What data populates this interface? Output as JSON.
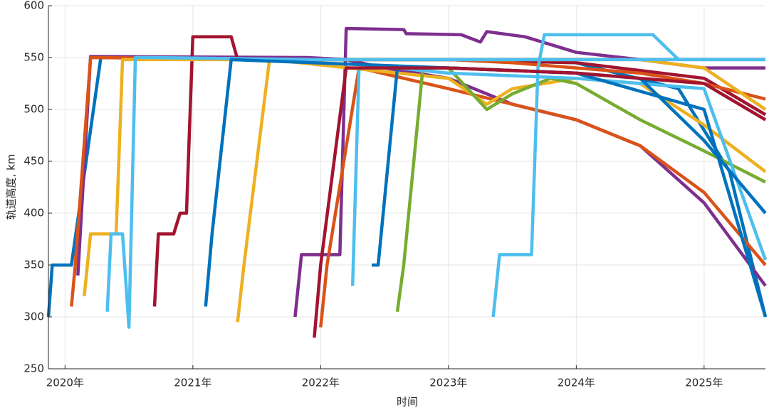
{
  "chart_data": {
    "type": "line",
    "xlabel": "时间",
    "ylabel": "轨道高度, km",
    "xlim": [
      2019.87,
      2025.48
    ],
    "ylim": [
      250,
      600
    ],
    "xticks": [
      {
        "value": 2020,
        "label": "2020年"
      },
      {
        "value": 2021,
        "label": "2021年"
      },
      {
        "value": 2022,
        "label": "2022年"
      },
      {
        "value": 2023,
        "label": "2023年"
      },
      {
        "value": 2024,
        "label": "2024年"
      },
      {
        "value": 2025,
        "label": "2025年"
      }
    ],
    "yticks": [
      250,
      300,
      350,
      400,
      450,
      500,
      550,
      600
    ],
    "grid": true,
    "series": [
      {
        "color": "#0072BD",
        "x": [
          2019.87,
          2019.9,
          2020.05,
          2020.28,
          2021.5,
          2023.0,
          2024.0,
          2024.8,
          2025.2,
          2025.48
        ],
        "values": [
          300,
          350,
          350,
          550,
          548,
          548,
          545,
          520,
          440,
          300
        ]
      },
      {
        "color": "#7E2F8E",
        "x": [
          2020.1,
          2020.2,
          2021.9,
          2022.2,
          2022.5,
          2023.0,
          2023.5,
          2024.0,
          2024.5,
          2025.0,
          2025.48
        ],
        "values": [
          340,
          551,
          550,
          548,
          540,
          530,
          505,
          490,
          465,
          410,
          330
        ]
      },
      {
        "color": "#7E2F8E",
        "x": [
          2021.8,
          2021.85,
          2022.15,
          2022.2,
          2022.65,
          2022.67,
          2023.1,
          2023.25,
          2023.3,
          2023.6,
          2024.0,
          2024.5,
          2025.0,
          2025.48
        ],
        "values": [
          300,
          360,
          360,
          578,
          577,
          573,
          572,
          565,
          575,
          570,
          555,
          548,
          540,
          540
        ]
      },
      {
        "color": "#A2142F",
        "x": [
          2020.7,
          2020.73,
          2020.85,
          2020.9,
          2020.95,
          2021.0,
          2021.3,
          2021.35,
          2023.0,
          2024.0,
          2025.0,
          2025.48
        ],
        "values": [
          310,
          380,
          380,
          400,
          400,
          570,
          570,
          548,
          548,
          545,
          530,
          495
        ]
      },
      {
        "color": "#D95319",
        "x": [
          2020.05,
          2020.08,
          2020.2,
          2022.0,
          2023.0,
          2023.5,
          2024.0,
          2024.5,
          2025.0,
          2025.48
        ],
        "values": [
          310,
          350,
          550,
          548,
          548,
          545,
          540,
          535,
          525,
          510
        ]
      },
      {
        "color": "#D95319",
        "x": [
          2022.0,
          2022.05,
          2022.3,
          2023.0,
          2023.5,
          2024.0,
          2024.5,
          2025.0,
          2025.48
        ],
        "values": [
          290,
          350,
          540,
          520,
          505,
          490,
          465,
          420,
          350
        ]
      },
      {
        "color": "#EDB120",
        "x": [
          2020.15,
          2020.2,
          2020.4,
          2020.45,
          2021.5,
          2022.0,
          2023.0,
          2024.0,
          2024.5,
          2025.0,
          2025.48
        ],
        "values": [
          320,
          380,
          380,
          548,
          548,
          548,
          548,
          548,
          548,
          540,
          500
        ]
      },
      {
        "color": "#EDB120",
        "x": [
          2021.35,
          2021.4,
          2021.6,
          2023.0,
          2023.3,
          2023.5,
          2024.0,
          2024.5,
          2025.0,
          2025.48
        ],
        "values": [
          295,
          350,
          548,
          530,
          505,
          520,
          530,
          525,
          485,
          440
        ]
      },
      {
        "color": "#77AC30",
        "x": [
          2022.6,
          2022.65,
          2022.8,
          2023.0,
          2023.3,
          2023.5,
          2023.8,
          2024.0,
          2024.5,
          2025.0,
          2025.48
        ],
        "values": [
          305,
          350,
          540,
          540,
          500,
          515,
          530,
          525,
          490,
          460,
          430
        ]
      },
      {
        "color": "#4DBEEE",
        "x": [
          2020.33,
          2020.36,
          2020.45,
          2020.5,
          2020.55,
          2020.65,
          2022.0,
          2025.48
        ],
        "values": [
          305,
          380,
          380,
          290,
          550,
          550,
          548,
          548
        ]
      },
      {
        "color": "#4DBEEE",
        "x": [
          2023.35,
          2023.4,
          2023.65,
          2023.7,
          2023.75,
          2024.6,
          2024.8,
          2025.48
        ],
        "values": [
          300,
          360,
          360,
          540,
          572,
          572,
          548,
          548
        ]
      },
      {
        "color": "#4DBEEE",
        "x": [
          2022.25,
          2022.3,
          2022.6,
          2023.0,
          2024.0,
          2025.0,
          2025.48
        ],
        "values": [
          330,
          540,
          540,
          535,
          530,
          520,
          355
        ]
      },
      {
        "color": "#0072BD",
        "x": [
          2021.1,
          2021.15,
          2021.3,
          2023.0,
          2024.0,
          2024.5,
          2025.0,
          2025.48
        ],
        "values": [
          310,
          380,
          548,
          540,
          535,
          530,
          470,
          400
        ]
      },
      {
        "color": "#0072BD",
        "x": [
          2022.4,
          2022.45,
          2022.6,
          2023.0,
          2024.0,
          2025.0,
          2025.48
        ],
        "values": [
          350,
          350,
          540,
          540,
          535,
          500,
          300
        ]
      },
      {
        "color": "#A2142F",
        "x": [
          2021.95,
          2022.0,
          2022.2,
          2023.0,
          2024.0,
          2025.0,
          2025.48
        ],
        "values": [
          280,
          350,
          540,
          540,
          535,
          525,
          490
        ]
      }
    ]
  }
}
